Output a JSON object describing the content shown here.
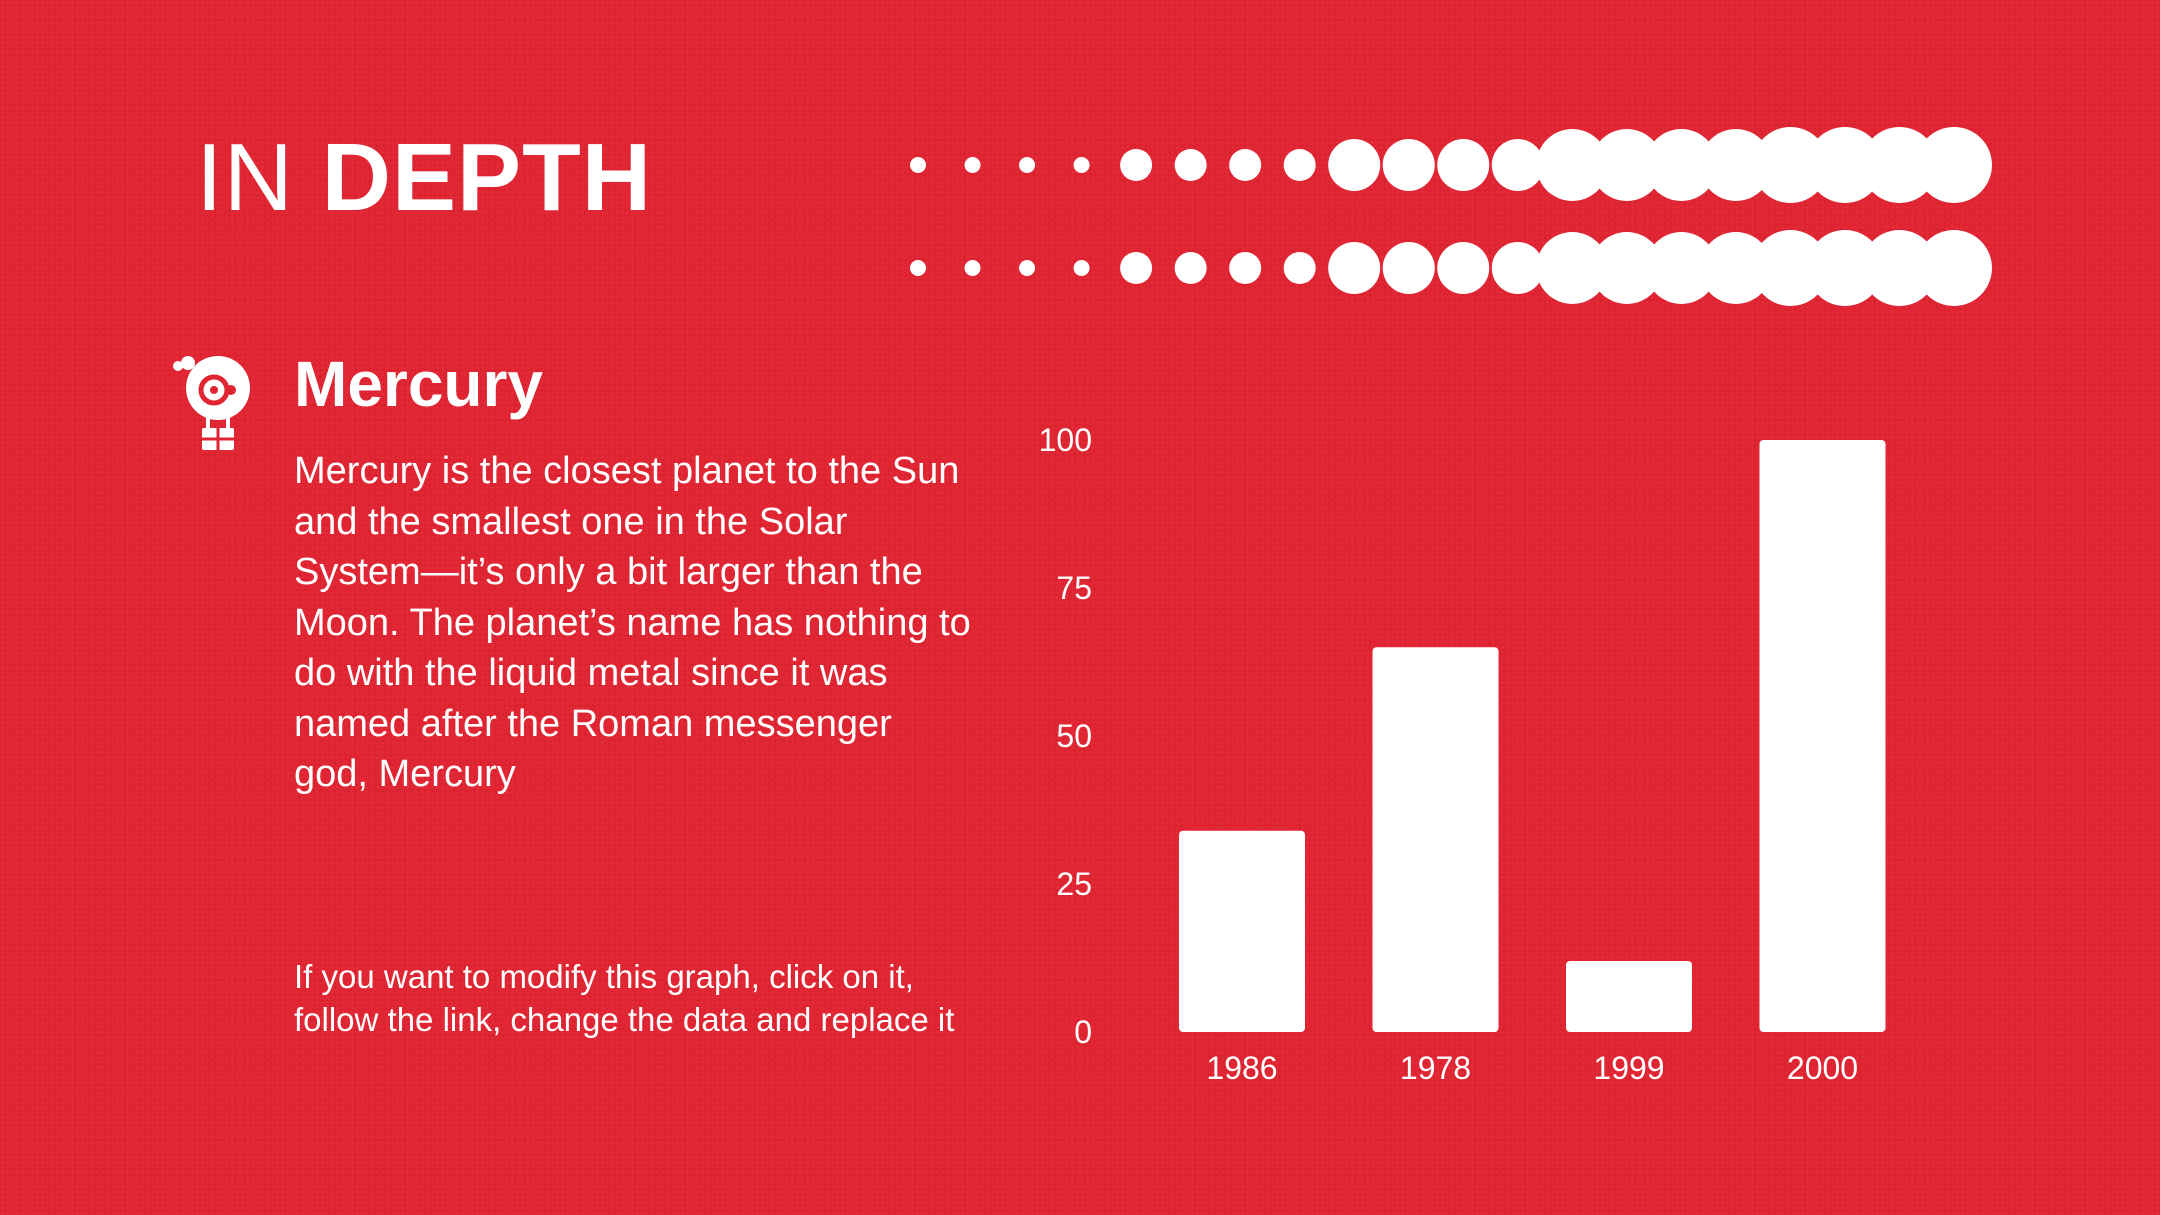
{
  "header": {
    "title_light": "IN",
    "title_bold": "DEPTH"
  },
  "section": {
    "icon": "hot-air-balloon-icon",
    "title": "Mercury",
    "body": "Mercury is the closest planet to the Sun and the smallest one in the Solar System—it’s only a bit larger than the Moon. The planet’s name has nothing to do with the liquid metal since it was named after the Roman messenger god, Mercury",
    "note": "If you want to modify this graph, click on it, follow the link, change the data and replace it"
  },
  "colors": {
    "background": "#e02431",
    "foreground": "#ffffff"
  },
  "chart_data": {
    "type": "bar",
    "categories": [
      "1986",
      "1978",
      "1999",
      "2000"
    ],
    "values": [
      34,
      65,
      12,
      100
    ],
    "ylim": [
      0,
      100
    ],
    "yticks": [
      "0",
      "25",
      "50",
      "75",
      "100"
    ],
    "title": "",
    "xlabel": "",
    "ylabel": "",
    "grid": false,
    "legend": "none"
  }
}
